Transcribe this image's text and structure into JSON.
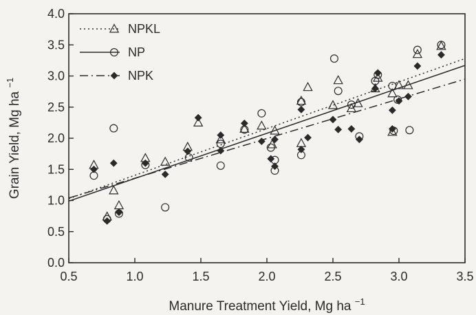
{
  "chart_data": {
    "type": "scatter",
    "title": "",
    "xlabel": "Manure Treatment Yield, Mg ha",
    "xlabel_sup": "−1",
    "ylabel": "Grain Yield, Mg ha",
    "ylabel_sup": "−1",
    "xlim": [
      0.5,
      3.5
    ],
    "ylim": [
      0.0,
      4.0
    ],
    "xticks": [
      "0.5",
      "1.0",
      "1.5",
      "2.0",
      "2.5",
      "3.0",
      "3.5"
    ],
    "yticks": [
      "0.0",
      "0.5",
      "1.0",
      "1.5",
      "2.0",
      "2.5",
      "3.0",
      "3.5",
      "4.0"
    ],
    "grid": false,
    "legend_position": "top-left",
    "colors": {
      "ink": "#2a2a2a",
      "background": "#f4f3f0"
    },
    "series": [
      {
        "name": "NPKL",
        "marker": "triangle-open",
        "line_style": "dotted",
        "fit": {
          "x": [
            0.5,
            3.5
          ],
          "y": [
            1.03,
            3.28
          ]
        },
        "points": [
          [
            0.69,
            1.57
          ],
          [
            0.79,
            0.74
          ],
          [
            0.84,
            1.16
          ],
          [
            0.88,
            0.92
          ],
          [
            1.08,
            1.68
          ],
          [
            1.23,
            1.62
          ],
          [
            1.4,
            1.86
          ],
          [
            1.48,
            2.25
          ],
          [
            1.65,
            1.98
          ],
          [
            1.83,
            2.15
          ],
          [
            1.96,
            2.2
          ],
          [
            2.04,
            1.9
          ],
          [
            2.06,
            2.12
          ],
          [
            2.26,
            1.92
          ],
          [
            2.26,
            2.6
          ],
          [
            2.31,
            2.82
          ],
          [
            2.5,
            2.53
          ],
          [
            2.54,
            2.93
          ],
          [
            2.64,
            2.48
          ],
          [
            2.69,
            2.56
          ],
          [
            2.82,
            2.8
          ],
          [
            2.84,
            2.97
          ],
          [
            2.95,
            2.72
          ],
          [
            2.95,
            2.1
          ],
          [
            3.0,
            2.85
          ],
          [
            3.07,
            2.85
          ],
          [
            3.14,
            3.35
          ],
          [
            3.32,
            3.48
          ]
        ]
      },
      {
        "name": "NP",
        "marker": "circle-open",
        "line_style": "solid",
        "fit": {
          "x": [
            0.5,
            3.5
          ],
          "y": [
            0.99,
            3.17
          ]
        },
        "points": [
          [
            0.69,
            1.4
          ],
          [
            0.79,
            0.7
          ],
          [
            0.84,
            2.16
          ],
          [
            0.88,
            0.79
          ],
          [
            1.08,
            1.57
          ],
          [
            1.23,
            0.89
          ],
          [
            1.41,
            1.69
          ],
          [
            1.65,
            1.91
          ],
          [
            1.65,
            1.56
          ],
          [
            1.83,
            2.14
          ],
          [
            1.96,
            2.4
          ],
          [
            2.03,
            1.85
          ],
          [
            2.06,
            1.65
          ],
          [
            2.06,
            1.48
          ],
          [
            2.26,
            1.73
          ],
          [
            2.26,
            2.58
          ],
          [
            2.51,
            3.28
          ],
          [
            2.54,
            2.76
          ],
          [
            2.64,
            2.54
          ],
          [
            2.7,
            2.03
          ],
          [
            2.82,
            2.92
          ],
          [
            2.84,
            3.02
          ],
          [
            2.95,
            2.84
          ],
          [
            2.96,
            2.12
          ],
          [
            2.99,
            2.62
          ],
          [
            3.08,
            2.13
          ],
          [
            3.14,
            3.42
          ],
          [
            3.32,
            3.5
          ]
        ]
      },
      {
        "name": "NPK",
        "marker": "diamond-filled",
        "line_style": "dash-dot",
        "fit": {
          "x": [
            0.5,
            3.5
          ],
          "y": [
            1.04,
            2.95
          ]
        },
        "points": [
          [
            0.69,
            1.5
          ],
          [
            0.79,
            0.67
          ],
          [
            0.84,
            1.6
          ],
          [
            0.88,
            0.81
          ],
          [
            1.08,
            1.6
          ],
          [
            1.23,
            1.42
          ],
          [
            1.4,
            1.79
          ],
          [
            1.48,
            2.33
          ],
          [
            1.65,
            2.05
          ],
          [
            1.65,
            1.8
          ],
          [
            1.83,
            2.24
          ],
          [
            1.96,
            1.95
          ],
          [
            2.03,
            1.67
          ],
          [
            2.06,
            1.55
          ],
          [
            2.06,
            1.98
          ],
          [
            2.26,
            1.82
          ],
          [
            2.26,
            2.46
          ],
          [
            2.31,
            2.01
          ],
          [
            2.5,
            2.3
          ],
          [
            2.54,
            2.14
          ],
          [
            2.64,
            2.15
          ],
          [
            2.7,
            1.98
          ],
          [
            2.82,
            2.8
          ],
          [
            2.84,
            3.05
          ],
          [
            2.95,
            2.45
          ],
          [
            2.95,
            2.15
          ],
          [
            3.0,
            2.6
          ],
          [
            3.07,
            2.67
          ],
          [
            3.14,
            3.16
          ],
          [
            3.32,
            3.34
          ]
        ]
      }
    ]
  }
}
